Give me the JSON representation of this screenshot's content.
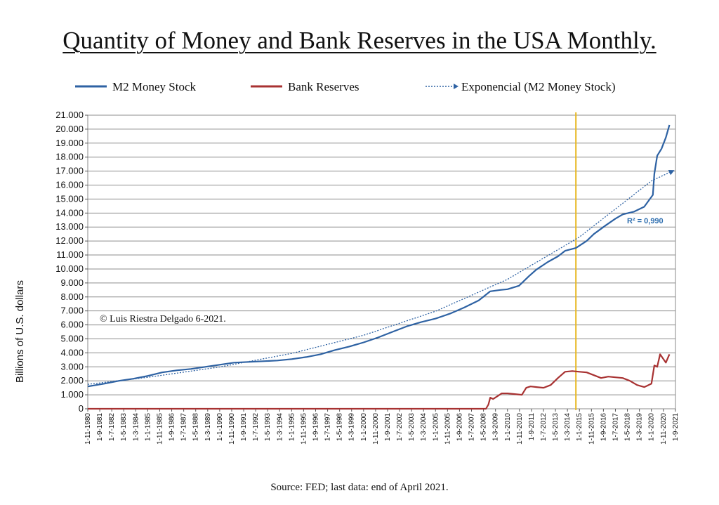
{
  "chart_data": {
    "type": "line",
    "title": "Quantity of Money and Bank Reserves in the USA Monthly.",
    "ylabel": "Billions of U.S. dollars",
    "xlabel": "",
    "ylim": [
      0,
      21000
    ],
    "yticks": [
      "0",
      "1.000",
      "2.000",
      "3.000",
      "4.000",
      "5.000",
      "6.000",
      "7.000",
      "8.000",
      "9.000",
      "10.000",
      "11.000",
      "12.000",
      "13.000",
      "14.000",
      "15.000",
      "16.000",
      "17.000",
      "18.000",
      "19.000",
      "20.000",
      "21.000"
    ],
    "xticks": [
      "1-11-1980",
      "1-9-1981",
      "1-7-1982",
      "1-5-1983",
      "1-3-1984",
      "1-1-1985",
      "1-11-1985",
      "1-9-1986",
      "1-7-1987",
      "1-5-1988",
      "1-3-1989",
      "1-1-1990",
      "1-11-1990",
      "1-9-1991",
      "1-7-1992",
      "1-5-1993",
      "1-3-1994",
      "1-1-1995",
      "1-11-1995",
      "1-9-1996",
      "1-7-1997",
      "1-5-1998",
      "1-3-1999",
      "1-1-2000",
      "1-11-2000",
      "1-9-2001",
      "1-7-2002",
      "1-5-2003",
      "1-3-2004",
      "1-1-2005",
      "1-11-2005",
      "1-9-2006",
      "1-7-2007",
      "1-5-2008",
      "1-3-2009",
      "1-1-2010",
      "1-11-2010",
      "1-9-2011",
      "1-7-2012",
      "1-5-2013",
      "1-3-2014",
      "1-1-2015",
      "1-11-2015",
      "1-9-2016",
      "1-7-2017",
      "1-5-2018",
      "1-3-2019",
      "1-1-2020",
      "1-11-2020",
      "1-9-2021"
    ],
    "grid": true,
    "legend_position": "top",
    "vertical_marker": {
      "x": 2014.75,
      "color": "#e8b923"
    },
    "annotation": "R² = 0,990",
    "series": [
      {
        "name": "M2 Money Stock",
        "style": "solid",
        "color": "#2e62a3",
        "x": [
          1980.83,
          1982,
          1983,
          1984,
          1985,
          1986,
          1987,
          1988,
          1989,
          1990,
          1991,
          1992,
          1993,
          1994,
          1995,
          1996,
          1997,
          1998,
          1999,
          2000,
          2001,
          2002,
          2003,
          2004,
          2005,
          2006,
          2007,
          2008,
          2008.8,
          2009.5,
          2010,
          2010.8,
          2011.5,
          2012,
          2012.8,
          2013.5,
          2014,
          2014.75,
          2015.5,
          2016,
          2016.8,
          2017.5,
          2018,
          2018.8,
          2019.5,
          2020.1,
          2020.2,
          2020.4,
          2020.7,
          2021,
          2021.25
        ],
        "y": [
          1600,
          1800,
          2000,
          2150,
          2350,
          2600,
          2750,
          2850,
          3000,
          3150,
          3300,
          3350,
          3400,
          3450,
          3550,
          3700,
          3900,
          4200,
          4450,
          4750,
          5100,
          5500,
          5900,
          6200,
          6450,
          6800,
          7250,
          7750,
          8400,
          8500,
          8550,
          8800,
          9500,
          9950,
          10500,
          10900,
          11300,
          11500,
          12000,
          12500,
          13100,
          13600,
          13900,
          14100,
          14450,
          15300,
          16800,
          18100,
          18600,
          19400,
          20300
        ]
      },
      {
        "name": "Bank Reserves",
        "style": "solid",
        "color": "#a83232",
        "x": [
          1980.83,
          2008.5,
          2008.67,
          2008.8,
          2009,
          2009.3,
          2009.6,
          2010,
          2010.5,
          2011,
          2011.3,
          2011.6,
          2012,
          2012.5,
          2013,
          2013.5,
          2014,
          2014.5,
          2015,
          2015.5,
          2016,
          2016.5,
          2017,
          2017.5,
          2018,
          2018.5,
          2019,
          2019.5,
          2019.7,
          2020,
          2020.2,
          2020.4,
          2020.6,
          2021,
          2021.25
        ],
        "y": [
          0,
          0,
          300,
          800,
          700,
          900,
          1100,
          1100,
          1050,
          1000,
          1500,
          1600,
          1550,
          1500,
          1700,
          2200,
          2650,
          2700,
          2650,
          2600,
          2400,
          2200,
          2300,
          2250,
          2200,
          2000,
          1700,
          1550,
          1650,
          1800,
          3100,
          3000,
          3900,
          3300,
          3900
        ]
      },
      {
        "name": "Exponencial (M2 Money Stock)",
        "style": "dotted",
        "color": "#2e62a3",
        "x": [
          1980.83,
          1985,
          1990,
          1995,
          2000,
          2005,
          2010,
          2015,
          2020,
          2021.25
        ],
        "y": [
          1750,
          2250,
          2990,
          3960,
          5260,
          6980,
          9260,
          12290,
          16300,
          16900
        ]
      }
    ]
  }
}
